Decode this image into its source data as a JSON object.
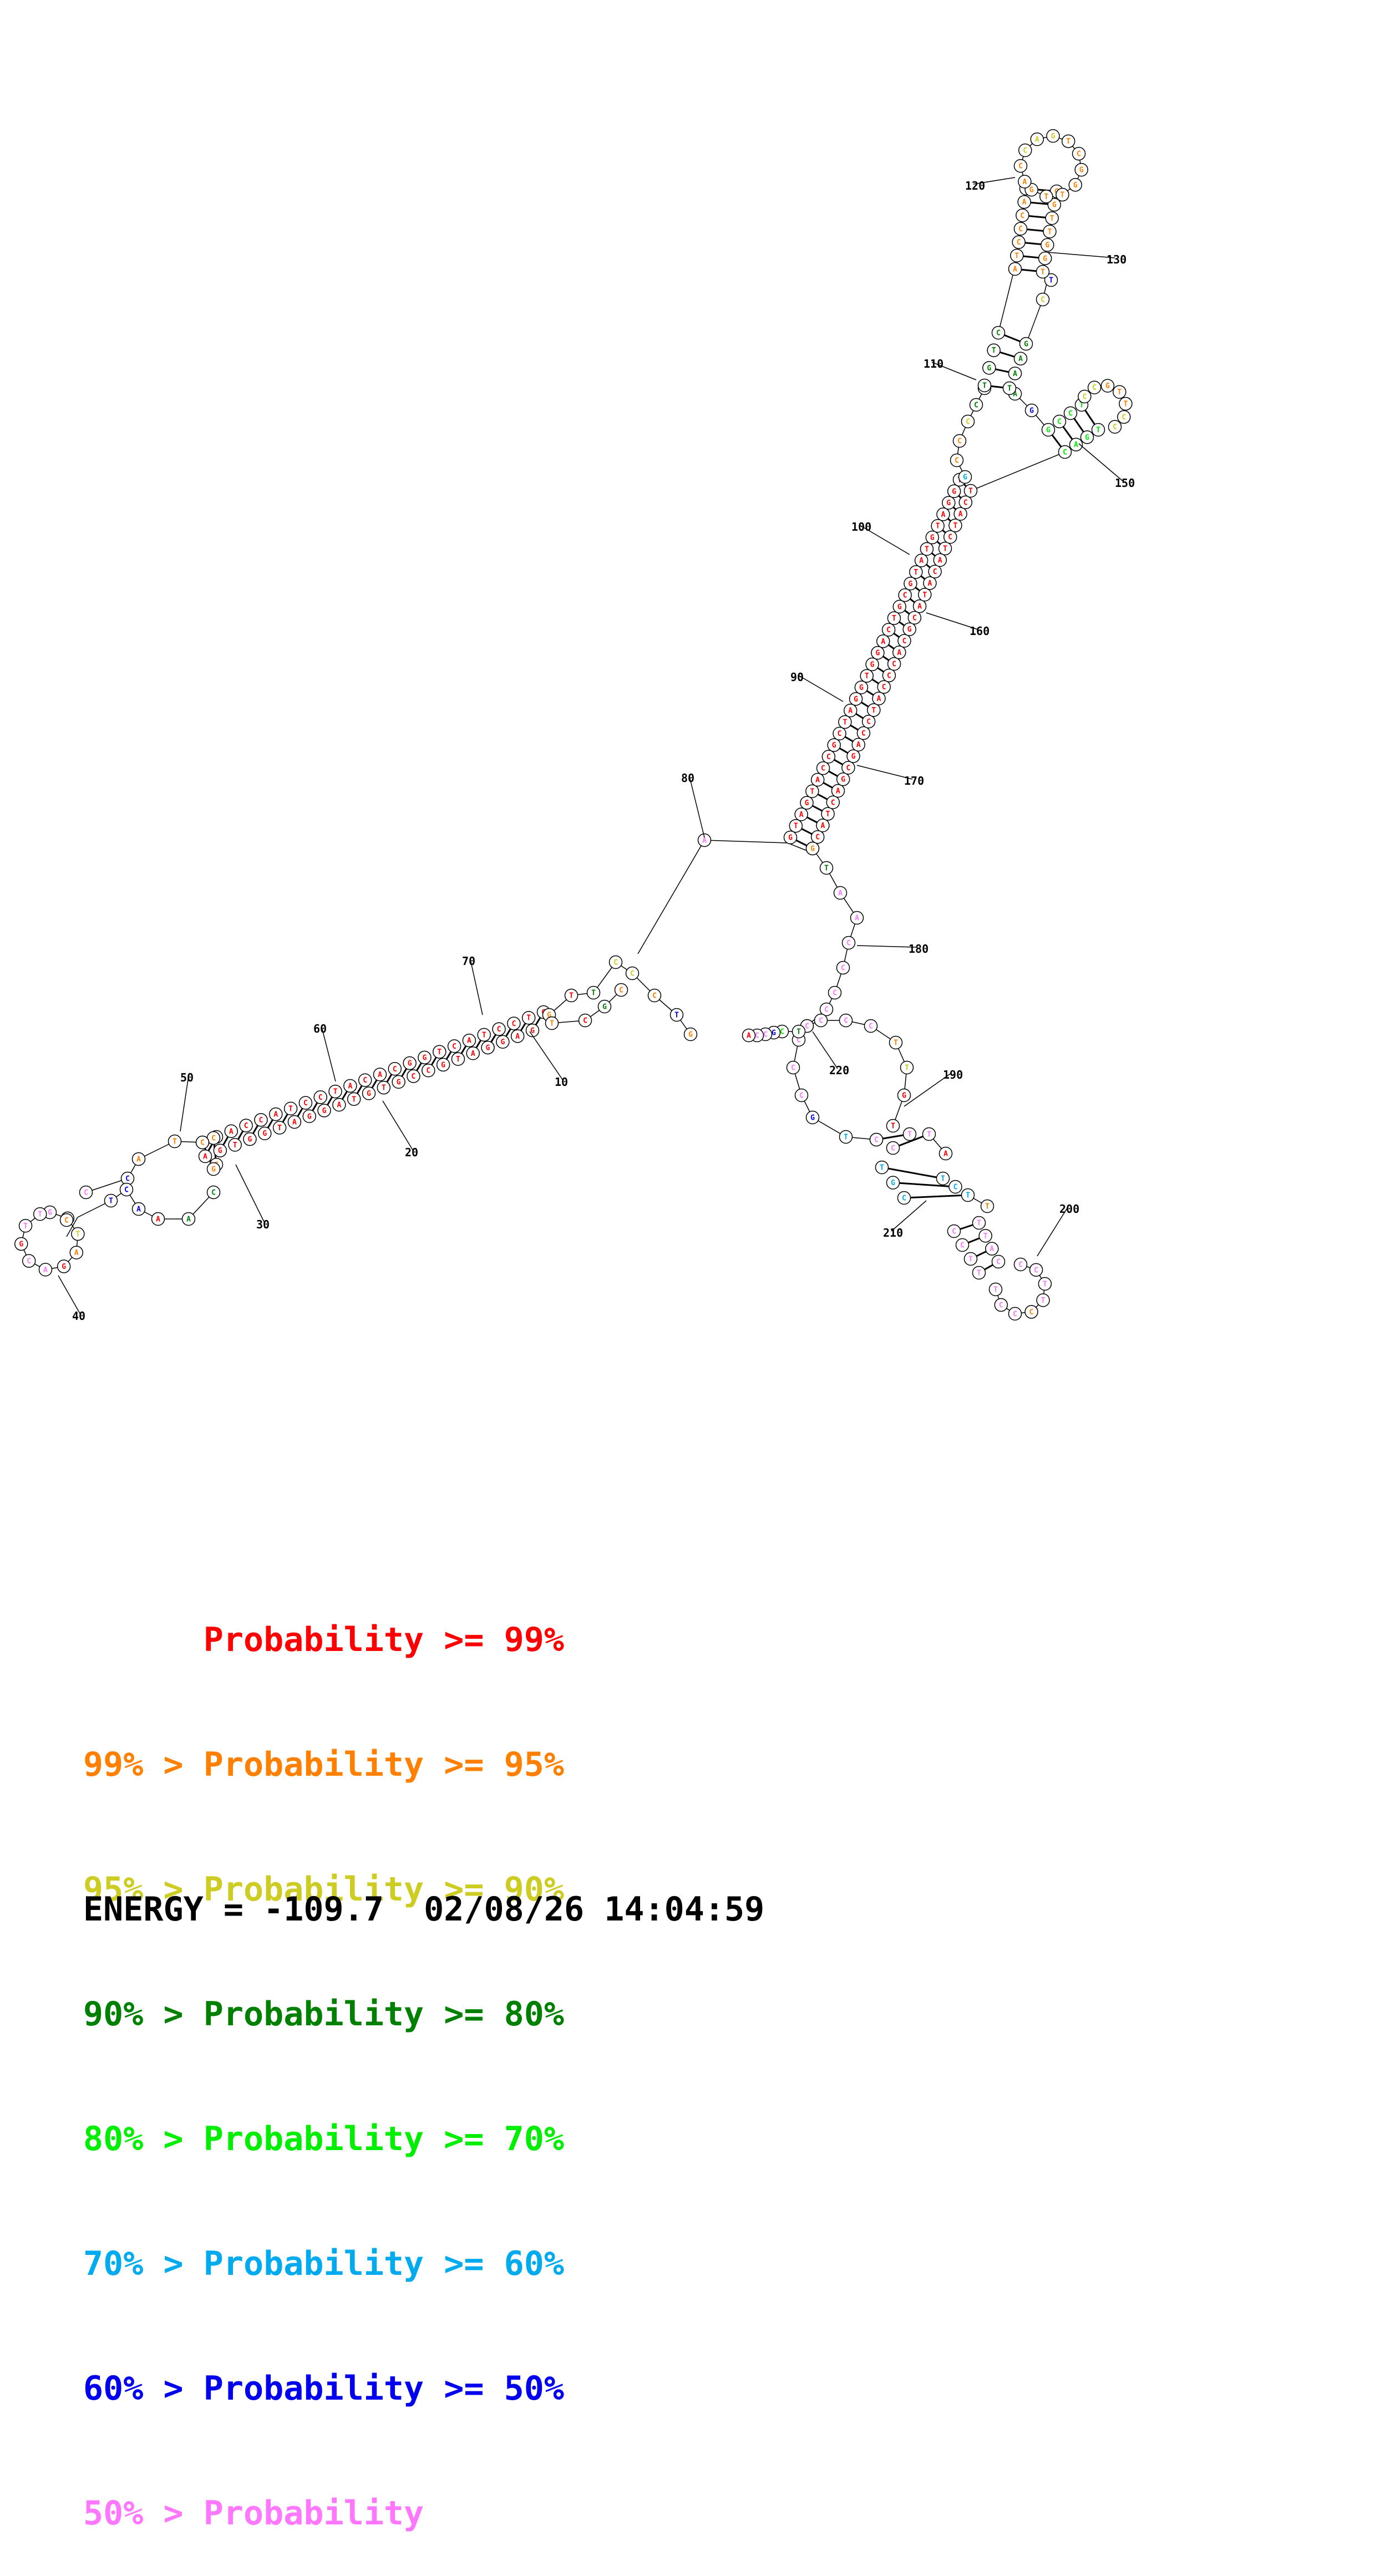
{
  "diagram": {
    "type": "rna-secondary-structure",
    "index_labels": [
      "10",
      "20",
      "30",
      "40",
      "50",
      "60",
      "70",
      "80",
      "90",
      "100",
      "110",
      "120",
      "130",
      "150",
      "160",
      "170",
      "180",
      "190",
      "200",
      "210",
      "220"
    ],
    "probability_colors": {
      "ge99": "#ff0000",
      "ge95": "#ff7f00",
      "ge90": "#cccc22",
      "ge80": "#008000",
      "ge70": "#00ee00",
      "ge60": "#00aaee",
      "ge50": "#0000ee",
      "lt50": "#ff77ff"
    }
  },
  "legend": {
    "rows": [
      {
        "prefix": "      ",
        "text": "Probability >= 99%",
        "color": "#ff0000"
      },
      {
        "prefix": "99% > ",
        "text": "Probability >= 95%",
        "color": "#ff7f00"
      },
      {
        "prefix": "95% > ",
        "text": "Probability >= 90%",
        "color": "#cccc22"
      },
      {
        "prefix": "90% > ",
        "text": "Probability >= 80%",
        "color": "#008000"
      },
      {
        "prefix": "80% > ",
        "text": "Probability >= 70%",
        "color": "#00ee00"
      },
      {
        "prefix": "70% > ",
        "text": "Probability >= 60%",
        "color": "#00aaee"
      },
      {
        "prefix": "60% > ",
        "text": "Probability >= 50%",
        "color": "#0000ee"
      },
      {
        "prefix": "50% > ",
        "text": "Probability",
        "color": "#ff77ff"
      }
    ]
  },
  "footer": {
    "energy": "ENERGY = -109.7",
    "timestamp": "02/08/26 14:04:59"
  }
}
